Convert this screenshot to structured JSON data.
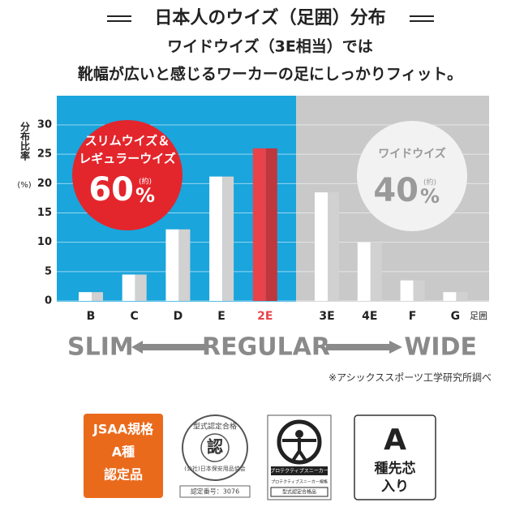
{
  "chart_data": {
    "type": "bar",
    "title": "日本人のウイズ（足囲）分布",
    "subtitle": [
      "ワイドウイズ（3E相当）では",
      "靴幅が広いと感じるワーカーの足にしっかりフィット。"
    ],
    "ylabel": "分布比率",
    "ylabel_unit": "(%)",
    "xlabel": "足囲",
    "categories": [
      "B",
      "C",
      "D",
      "E",
      "2E",
      "3E",
      "4E",
      "F",
      "G"
    ],
    "values": [
      1.5,
      4.5,
      12.2,
      21.2,
      26,
      18.5,
      10,
      3.5,
      1.5
    ],
    "colors": [
      "#ffffff",
      "#ffffff",
      "#ffffff",
      "#ffffff",
      "#e8434a",
      "#ffffff",
      "#ffffff",
      "#ffffff",
      "#ffffff"
    ],
    "ylim": [
      0,
      30
    ],
    "yticks": [
      0,
      5,
      10,
      15,
      20,
      25,
      30
    ],
    "grid": true,
    "groups": [
      {
        "lines": [
          "スリムウイズ＆",
          "レギュラーウイズ"
        ],
        "share": 60,
        "unit": "%",
        "approx": "(約)",
        "color": "#e3262c"
      },
      {
        "lines": [
          "ワイドウイズ"
        ],
        "share": 40,
        "unit": "%",
        "approx": "(約)",
        "color": "#f2f2f2"
      }
    ],
    "scale_labels": [
      "SLIM",
      "REGULAR",
      "WIDE"
    ],
    "note": "※アシックススポーツ工学研究所調べ"
  },
  "badges": {
    "jsaa": [
      "JSAA規格",
      "A種",
      "認定品"
    ],
    "seal": {
      "ring": "型式認定合格",
      "center": "認",
      "org": "(公社)日本保安用品協会",
      "number": "認定番号：3076"
    },
    "sneaker": {
      "brand": "プロテクティブスニーカー",
      "standard": "プロテクティブスニーカー規格",
      "pass": "型式認定合格品"
    },
    "toe": [
      "A",
      "種先芯",
      "入り"
    ]
  }
}
